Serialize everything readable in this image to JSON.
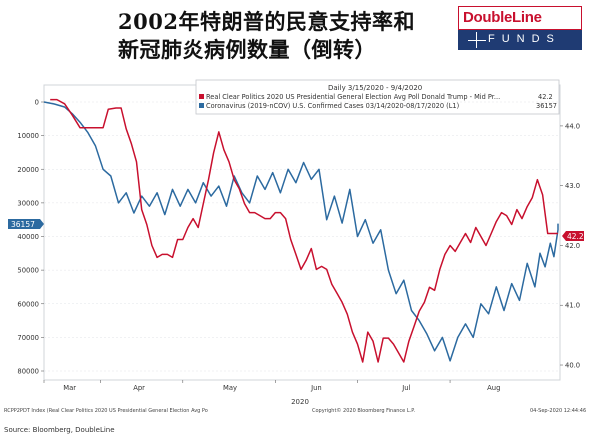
{
  "titles": {
    "line1": "2002年特朗普的民意支持率和",
    "line2": "新冠肺炎病例数量（倒转）"
  },
  "logo": {
    "name": "DoubleLine",
    "sub": "FUNDS"
  },
  "legend": {
    "header": "Daily 3/15/2020 - 9/4/2020",
    "entries": [
      {
        "label": "Real Clear Politics 2020 US Presidential General Election Avg Poll Donald Trump - Mid Pr...",
        "value": "42.2",
        "color": "#c8102e"
      },
      {
        "label": "Coronavirus (2019-nCOV) U.S. Confirmed Cases 03/14/2020-08/17/2020   (L1)",
        "value": "36157",
        "color": "#2c6aa0"
      }
    ]
  },
  "footer": {
    "index_note": "RCPP2PDT Index (Real Clear Politics 2020 US Presidential General Election Avg Po",
    "copyright": "Copyright© 2020 Bloomberg Finance L.P.",
    "stamp": "04-Sep-2020 12:44:46",
    "source": "Source: Bloomberg, DoubleLine"
  },
  "chart_data": {
    "type": "line",
    "x_labels": [
      "Mar",
      "Apr",
      "May",
      "Jun",
      "Jul",
      "Aug"
    ],
    "x_year": "2020",
    "left_axis": {
      "ticks": [
        "0",
        "10000",
        "20000",
        "30000",
        "40000",
        "50000",
        "60000",
        "70000",
        "80000"
      ],
      "range": [
        0,
        80000
      ],
      "inverted": true
    },
    "right_axis": {
      "ticks": [
        "44.0",
        "43.0",
        "42.0",
        "41.0",
        "40.0"
      ],
      "range": [
        39.9,
        44.4
      ]
    },
    "last_labels": {
      "left": "36157",
      "right": "42.2"
    },
    "series": [
      {
        "name": "Real Clear Politics 2020 US Presidential General Election Avg Poll Donald Trump",
        "axis": "right",
        "color": "#c8102e",
        "points": [
          [
            0.012,
            44.44
          ],
          [
            0.025,
            44.44
          ],
          [
            0.04,
            44.37
          ],
          [
            0.055,
            44.18
          ],
          [
            0.07,
            43.97
          ],
          [
            0.08,
            43.97
          ],
          [
            0.09,
            43.97
          ],
          [
            0.105,
            43.97
          ],
          [
            0.115,
            43.97
          ],
          [
            0.125,
            44.28
          ],
          [
            0.14,
            44.3
          ],
          [
            0.15,
            44.3
          ],
          [
            0.16,
            43.95
          ],
          [
            0.17,
            43.7
          ],
          [
            0.18,
            43.4
          ],
          [
            0.19,
            42.6
          ],
          [
            0.2,
            42.35
          ],
          [
            0.21,
            42.0
          ],
          [
            0.22,
            41.8
          ],
          [
            0.23,
            41.85
          ],
          [
            0.24,
            41.85
          ],
          [
            0.25,
            41.8
          ],
          [
            0.26,
            42.1
          ],
          [
            0.27,
            42.1
          ],
          [
            0.28,
            42.3
          ],
          [
            0.29,
            42.45
          ],
          [
            0.3,
            42.3
          ],
          [
            0.31,
            42.7
          ],
          [
            0.32,
            43.1
          ],
          [
            0.33,
            43.55
          ],
          [
            0.34,
            43.9
          ],
          [
            0.35,
            43.6
          ],
          [
            0.36,
            43.4
          ],
          [
            0.37,
            43.1
          ],
          [
            0.38,
            42.95
          ],
          [
            0.39,
            42.7
          ],
          [
            0.4,
            42.55
          ],
          [
            0.41,
            42.55
          ],
          [
            0.42,
            42.5
          ],
          [
            0.43,
            42.45
          ],
          [
            0.44,
            42.45
          ],
          [
            0.45,
            42.55
          ],
          [
            0.46,
            42.55
          ],
          [
            0.47,
            42.45
          ],
          [
            0.48,
            42.1
          ],
          [
            0.49,
            41.85
          ],
          [
            0.5,
            41.6
          ],
          [
            0.51,
            41.75
          ],
          [
            0.52,
            41.95
          ],
          [
            0.53,
            41.6
          ],
          [
            0.54,
            41.65
          ],
          [
            0.55,
            41.6
          ],
          [
            0.56,
            41.35
          ],
          [
            0.57,
            41.2
          ],
          [
            0.58,
            41.05
          ],
          [
            0.59,
            40.85
          ],
          [
            0.6,
            40.55
          ],
          [
            0.61,
            40.35
          ],
          [
            0.62,
            40.05
          ],
          [
            0.63,
            40.55
          ],
          [
            0.64,
            40.4
          ],
          [
            0.65,
            40.05
          ],
          [
            0.66,
            40.45
          ],
          [
            0.67,
            40.45
          ],
          [
            0.68,
            40.35
          ],
          [
            0.69,
            40.2
          ],
          [
            0.7,
            40.05
          ],
          [
            0.71,
            40.4
          ],
          [
            0.72,
            40.65
          ],
          [
            0.73,
            40.9
          ],
          [
            0.74,
            41.05
          ],
          [
            0.75,
            41.3
          ],
          [
            0.76,
            41.25
          ],
          [
            0.77,
            41.6
          ],
          [
            0.78,
            41.85
          ],
          [
            0.79,
            42.0
          ],
          [
            0.8,
            41.9
          ],
          [
            0.81,
            42.05
          ],
          [
            0.82,
            42.2
          ],
          [
            0.83,
            42.05
          ],
          [
            0.84,
            42.3
          ],
          [
            0.85,
            42.15
          ],
          [
            0.86,
            42.0
          ],
          [
            0.87,
            42.2
          ],
          [
            0.88,
            42.4
          ],
          [
            0.89,
            42.55
          ],
          [
            0.9,
            42.5
          ],
          [
            0.91,
            42.35
          ],
          [
            0.92,
            42.6
          ],
          [
            0.93,
            42.45
          ],
          [
            0.94,
            42.65
          ],
          [
            0.95,
            42.8
          ],
          [
            0.96,
            43.1
          ],
          [
            0.97,
            42.85
          ],
          [
            0.98,
            42.2
          ],
          [
            0.99,
            42.2
          ],
          [
            1.0,
            42.2
          ]
        ]
      },
      {
        "name": "Coronavirus (2019-nCOV) U.S. Confirmed Cases 03/14/2020-08/17/2020 (L1)",
        "axis": "left",
        "color": "#2c6aa0",
        "points": [
          [
            0.0,
            0
          ],
          [
            0.02,
            600
          ],
          [
            0.04,
            1500
          ],
          [
            0.055,
            3500
          ],
          [
            0.07,
            6000
          ],
          [
            0.085,
            9000
          ],
          [
            0.1,
            13000
          ],
          [
            0.115,
            20000
          ],
          [
            0.13,
            22000
          ],
          [
            0.145,
            30000
          ],
          [
            0.16,
            27000
          ],
          [
            0.175,
            33000
          ],
          [
            0.19,
            28000
          ],
          [
            0.205,
            31000
          ],
          [
            0.22,
            27000
          ],
          [
            0.235,
            33500
          ],
          [
            0.25,
            26000
          ],
          [
            0.265,
            31000
          ],
          [
            0.28,
            26000
          ],
          [
            0.295,
            30000
          ],
          [
            0.31,
            24000
          ],
          [
            0.325,
            28000
          ],
          [
            0.34,
            25000
          ],
          [
            0.355,
            31000
          ],
          [
            0.37,
            22000
          ],
          [
            0.385,
            27000
          ],
          [
            0.4,
            30000
          ],
          [
            0.415,
            22000
          ],
          [
            0.43,
            26000
          ],
          [
            0.445,
            21000
          ],
          [
            0.46,
            27000
          ],
          [
            0.475,
            20000
          ],
          [
            0.49,
            24000
          ],
          [
            0.505,
            18000
          ],
          [
            0.52,
            23000
          ],
          [
            0.535,
            20000
          ],
          [
            0.55,
            35000
          ],
          [
            0.565,
            28000
          ],
          [
            0.58,
            36000
          ],
          [
            0.595,
            26000
          ],
          [
            0.61,
            40000
          ],
          [
            0.625,
            35000
          ],
          [
            0.64,
            42000
          ],
          [
            0.655,
            38000
          ],
          [
            0.67,
            50000
          ],
          [
            0.685,
            57000
          ],
          [
            0.7,
            53000
          ],
          [
            0.715,
            62000
          ],
          [
            0.73,
            65000
          ],
          [
            0.745,
            69000
          ],
          [
            0.76,
            74000
          ],
          [
            0.775,
            70000
          ],
          [
            0.79,
            77000
          ],
          [
            0.805,
            70000
          ],
          [
            0.82,
            66000
          ],
          [
            0.835,
            70000
          ],
          [
            0.85,
            60000
          ],
          [
            0.865,
            63000
          ],
          [
            0.88,
            55000
          ],
          [
            0.895,
            62000
          ],
          [
            0.91,
            54000
          ],
          [
            0.925,
            59000
          ],
          [
            0.94,
            48000
          ],
          [
            0.955,
            55000
          ],
          [
            0.965,
            45000
          ],
          [
            0.975,
            49000
          ],
          [
            0.985,
            42000
          ],
          [
            0.992,
            46000
          ],
          [
            1.0,
            38000
          ],
          [
            1.0,
            36157
          ]
        ]
      }
    ]
  }
}
